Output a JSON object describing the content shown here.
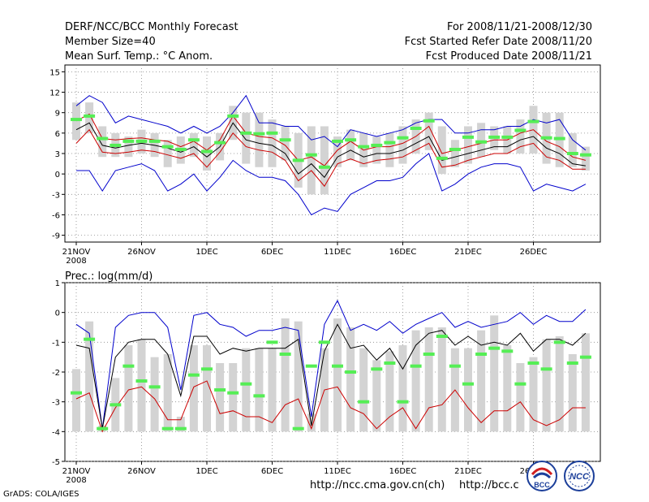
{
  "header": {
    "title": "DERF/NCC/BCC Monthly Forecast",
    "member_size": "Member Size=40",
    "variable": "Mean Surf. Temp.: °C Anom.",
    "period": "For 2008/11/21-2008/12/30",
    "start_date": "Fcst Started Refer Date 2008/11/20",
    "produced_date": "Fcst Produced Date 2008/11/21"
  },
  "footer": {
    "credit": "GrADS: COLA/IGES",
    "url_ncc": "http://ncc.cma.gov.cn(ch)",
    "url_bcc": "http://bcc.c"
  },
  "logos": {
    "bcc": "BCC",
    "ncc": "NCC"
  },
  "colors": {
    "max": "#0000cc",
    "mean": "#000000",
    "sd": "#cc0000",
    "bar": "#d3d3d3",
    "marker": "#55ee55"
  },
  "chart_data": [
    {
      "type": "line",
      "title": "",
      "ylabel": "Mean Surf. Temp.: °C Anom.",
      "ylim": [
        -10,
        16
      ],
      "yticks": [
        15,
        12,
        9,
        6,
        3,
        0,
        -3,
        -6,
        -9
      ],
      "x_tick_labels": [
        "21NOV",
        "26NOV",
        "1DEC",
        "6DEC",
        "11DEC",
        "16DEC",
        "21DEC",
        "26DEC"
      ],
      "x_tick_index": [
        0,
        5,
        10,
        15,
        20,
        25,
        30,
        35
      ],
      "x_sublabel": "2008",
      "days": 40,
      "series": [
        {
          "name": "max",
          "values": [
            10,
            11.5,
            10.5,
            7.5,
            8.5,
            8,
            7.5,
            7,
            6,
            7,
            6,
            7,
            9,
            11.5,
            7.5,
            7.5,
            7,
            7,
            5,
            5.5,
            4,
            6.5,
            6,
            5.5,
            6,
            6.5,
            7.5,
            8,
            8,
            6,
            6,
            6.5,
            6.5,
            7,
            7,
            8,
            7.5,
            8,
            5,
            3.5
          ]
        },
        {
          "name": "mean",
          "values": [
            6.5,
            7.5,
            4.2,
            3.8,
            4.2,
            4.5,
            4.2,
            3.8,
            3.2,
            4,
            2.5,
            4,
            7.5,
            5,
            4.5,
            4.2,
            3,
            0,
            1.5,
            -0.5,
            2.5,
            3.5,
            2.5,
            3,
            3,
            3.5,
            4.5,
            5.5,
            2,
            2.5,
            3,
            3.5,
            4,
            4,
            5,
            5.5,
            3.8,
            3,
            1.5,
            1.2
          ]
        },
        {
          "name": "sd_high",
          "values": [
            7.8,
            8.8,
            5.2,
            5,
            5.2,
            5.3,
            5,
            4.8,
            4,
            4.8,
            3.5,
            5,
            8.5,
            6,
            5.5,
            5.3,
            4.2,
            2,
            2.5,
            1.2,
            3.5,
            4.8,
            3.5,
            4,
            4,
            4.5,
            5.5,
            7,
            3,
            3.5,
            4,
            4.5,
            5,
            5,
            6,
            6.5,
            4.8,
            4,
            2.5,
            2
          ]
        },
        {
          "name": "sd_low",
          "values": [
            4.5,
            6.5,
            3.2,
            3,
            3.2,
            3.5,
            3.3,
            2.8,
            2.3,
            3,
            1,
            3.2,
            6,
            4,
            3.5,
            3.2,
            2,
            -1,
            0.5,
            -1.8,
            1.5,
            2.2,
            1.5,
            2,
            2.2,
            2.5,
            3.5,
            4.5,
            1,
            1.3,
            2,
            2.5,
            3,
            3,
            4,
            4.5,
            2.5,
            2,
            0.7,
            0.7
          ]
        },
        {
          "name": "min",
          "values": [
            0.5,
            0.5,
            -2.5,
            0.5,
            1,
            1.5,
            0.5,
            -2.5,
            -1.5,
            0,
            -2.5,
            -0.5,
            2,
            0.5,
            -0.5,
            -0.5,
            -1,
            -3,
            -6,
            -5,
            -5.5,
            -3,
            -2,
            -1,
            -1,
            -0.5,
            1.5,
            3,
            -2.5,
            -1.5,
            0,
            1,
            1.5,
            1.5,
            1,
            -2.5,
            -1.5,
            -2,
            -2.5,
            -1.5
          ]
        },
        {
          "name": "bar_top",
          "values": [
            10.5,
            10.5,
            7,
            6,
            5.5,
            6.5,
            6,
            5,
            5.5,
            6,
            5.5,
            6,
            10,
            9,
            9,
            8,
            7,
            6,
            7,
            7,
            5.5,
            6.5,
            6,
            5.5,
            6,
            7,
            8,
            9,
            7,
            5,
            7,
            7.5,
            7,
            7,
            8,
            10,
            9,
            9,
            6,
            4
          ]
        },
        {
          "name": "bar_bottom",
          "values": [
            5,
            6,
            2.5,
            2.5,
            2.5,
            3,
            2.5,
            1,
            1.5,
            2.5,
            0.5,
            2,
            5,
            1.5,
            1,
            1,
            2,
            -2,
            -3,
            -3,
            1,
            2,
            1,
            1.5,
            1,
            1.5,
            3,
            3.5,
            0,
            1,
            1.5,
            2.5,
            3.5,
            3,
            3,
            3,
            1.5,
            1,
            1,
            0.5
          ]
        },
        {
          "name": "marker",
          "values": [
            8,
            8.5,
            5.2,
            4.2,
            4.8,
            4.8,
            4.8,
            4,
            3.6,
            5,
            3.3,
            4.6,
            8.5,
            6,
            5.9,
            6,
            5,
            2,
            2.8,
            1,
            4.8,
            5,
            4,
            4.2,
            4.6,
            5.3,
            6.7,
            7.8,
            2.3,
            3.6,
            5.4,
            4.7,
            5.4,
            5.4,
            6.4,
            7.7,
            5.3,
            5.2,
            3,
            2.8
          ]
        }
      ]
    },
    {
      "type": "line",
      "title": "Prec.: log(mm/d)",
      "ylabel": "Prec.: log(mm/d)",
      "ylim": [
        -5,
        1
      ],
      "yticks": [
        1,
        0,
        -1,
        -2,
        -3,
        -4,
        -5
      ],
      "x_tick_labels": [
        "21NOV",
        "26NOV",
        "1DEC",
        "6DEC",
        "11DEC",
        "16DEC",
        "21DEC",
        "26DEC"
      ],
      "x_tick_index": [
        0,
        5,
        10,
        15,
        20,
        25,
        30,
        35
      ],
      "x_sublabel": "2008",
      "days": 40,
      "series": [
        {
          "name": "max",
          "values": [
            -0.4,
            -0.7,
            -3.9,
            -0.5,
            -0.1,
            0,
            0,
            -0.5,
            -2.6,
            -0.1,
            0,
            -0.4,
            -0.5,
            -0.8,
            -0.6,
            -0.6,
            -0.5,
            -0.6,
            -3.5,
            -0.4,
            0.4,
            -0.6,
            -0.4,
            -0.6,
            -0.3,
            -0.7,
            -0.4,
            -0.2,
            0,
            -0.5,
            -0.3,
            -0.5,
            -0.4,
            -0.3,
            0,
            -0.4,
            -0.1,
            -0.3,
            -0.3,
            0.1
          ]
        },
        {
          "name": "mean",
          "values": [
            -1.1,
            -1.2,
            -3.9,
            -1.5,
            -1,
            -0.9,
            -0.9,
            -1.4,
            -2.8,
            -0.8,
            -0.8,
            -1.4,
            -1.2,
            -1.3,
            -1.2,
            -1.2,
            -1.2,
            -0.9,
            -3.8,
            -1.3,
            -0.4,
            -1.2,
            -1.1,
            -1.6,
            -1.2,
            -1.9,
            -1.1,
            -0.7,
            -0.6,
            -1.1,
            -0.8,
            -1.1,
            -1,
            -1.1,
            -0.7,
            -1.3,
            -0.9,
            -0.9,
            -1.1,
            -0.7
          ]
        },
        {
          "name": "sd_low",
          "values": [
            -2.9,
            -2.7,
            -4,
            -3.2,
            -2.6,
            -2.5,
            -2.9,
            -3.6,
            -3.6,
            -2.5,
            -2.3,
            -3.4,
            -3.3,
            -3.5,
            -3.5,
            -3.7,
            -3.1,
            -2.9,
            -3.9,
            -2.6,
            -2.5,
            -3.2,
            -3.4,
            -3.9,
            -3.5,
            -3.2,
            -3.9,
            -3.2,
            -3.1,
            -2.6,
            -3.2,
            -3.7,
            -3.3,
            -3.3,
            -3,
            -3.6,
            -3.8,
            -3.6,
            -3.2,
            -3.2
          ]
        },
        {
          "name": "bar_top",
          "values": [
            -1.9,
            -0.3,
            -3.8,
            -2.2,
            -1.1,
            -0.9,
            -1.5,
            -1.4,
            -3.5,
            -1.1,
            -1.1,
            -1.7,
            -1.7,
            -1.2,
            -1.2,
            -1.2,
            -0.2,
            -0.3,
            -3.4,
            -1.2,
            -0.2,
            -0.5,
            -1.2,
            -1.6,
            -1.3,
            -1.1,
            -0.6,
            -0.5,
            -0.5,
            -1.2,
            -1.2,
            -0.6,
            -0.1,
            -1.1,
            -1.7,
            -1.5,
            -0.9,
            -0.8,
            -1.4,
            -0.7
          ]
        },
        {
          "name": "marker",
          "values": [
            -2.7,
            -0.9,
            -3.9,
            -3.1,
            -1.8,
            -2.3,
            -2.5,
            -3.9,
            -3.9,
            -2.1,
            -1.9,
            -2.6,
            -2.7,
            -2.4,
            -2.8,
            -1,
            -1.4,
            -3.9,
            -1.8,
            -1,
            -1.8,
            -2,
            -3,
            -1.9,
            -1.7,
            -3,
            -1.8,
            -1.4,
            -0.8,
            -1.8,
            -2.4,
            -1.4,
            -1.2,
            -1.3,
            -2.4,
            -1.7,
            -1.9,
            -1,
            -1.7,
            -1.5
          ]
        }
      ]
    }
  ]
}
